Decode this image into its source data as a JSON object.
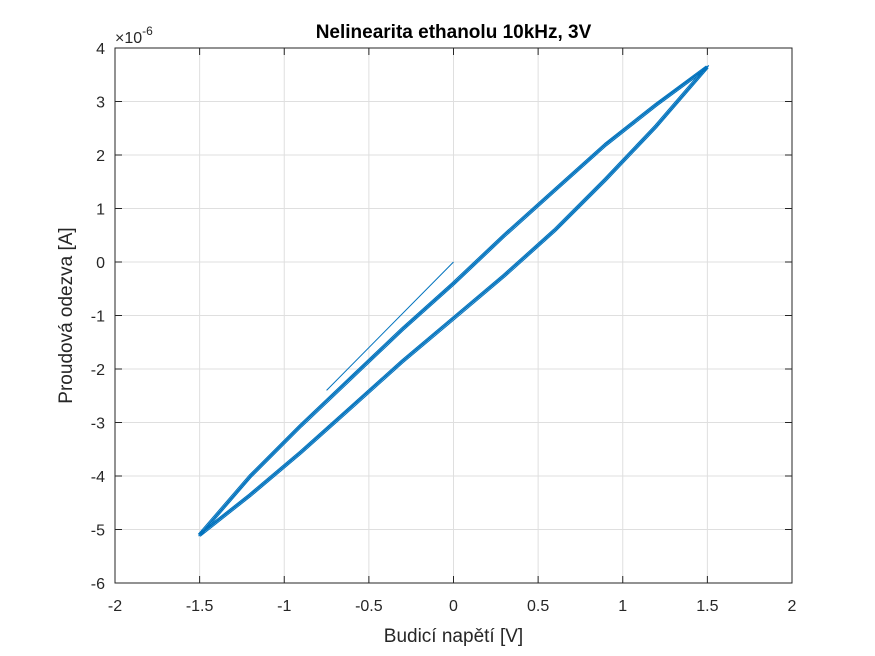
{
  "chart_data": {
    "type": "line",
    "title": "Nelinearita ethanolu 10kHz, 3V",
    "xlabel": "Budicí napětí [V]",
    "ylabel": "Proudová odezva [A]",
    "xlim": [
      -2,
      2
    ],
    "ylim": [
      -6,
      4
    ],
    "y_exponent_label": "×10",
    "y_exponent_power": "-6",
    "xticks": [
      -2,
      -1.5,
      -1,
      -0.5,
      0,
      0.5,
      1,
      1.5,
      2
    ],
    "xtick_labels": [
      "-2",
      "-1.5",
      "-1",
      "-0.5",
      "0",
      "0.5",
      "1",
      "1.5",
      "2"
    ],
    "yticks": [
      -6,
      -5,
      -4,
      -3,
      -2,
      -1,
      0,
      1,
      2,
      3,
      4
    ],
    "ytick_labels": [
      "-6",
      "-5",
      "-4",
      "-3",
      "-2",
      "-1",
      "0",
      "1",
      "2",
      "3",
      "4"
    ],
    "grid": true,
    "line_color": "#0072BD",
    "start_segment": {
      "x": [
        0,
        -0.75
      ],
      "y": [
        0,
        -2.4
      ]
    },
    "series": [
      {
        "x": [
          -1.5,
          -1.2,
          -0.9,
          -0.6,
          -0.3,
          0.0,
          0.3,
          0.6,
          0.9,
          1.2,
          1.5,
          1.2,
          0.9,
          0.6,
          0.3,
          0.0,
          -0.3,
          -0.6,
          -0.9,
          -1.2,
          -1.5
        ],
        "y": [
          -5.1,
          -4.0,
          -3.05,
          -2.15,
          -1.25,
          -0.4,
          0.5,
          1.35,
          2.2,
          2.95,
          3.65,
          2.55,
          1.55,
          0.6,
          -0.25,
          -1.05,
          -1.85,
          -2.7,
          -3.55,
          -4.35,
          -5.1
        ]
      }
    ]
  }
}
